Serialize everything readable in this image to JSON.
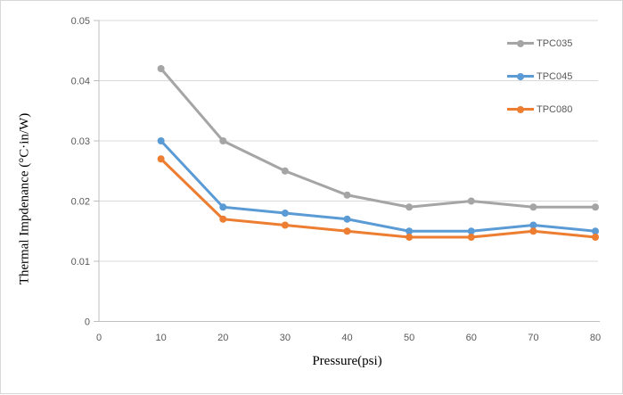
{
  "chart_data": {
    "type": "line",
    "title": "",
    "xlabel": "Pressure(psi)",
    "ylabel": "Thermal Impdenance (°C·in/W)",
    "x": [
      10,
      20,
      30,
      40,
      50,
      60,
      70,
      80
    ],
    "series": [
      {
        "name": "TPC035",
        "color": "#A5A5A5",
        "values": [
          0.042,
          0.03,
          0.025,
          0.021,
          0.019,
          0.02,
          0.019,
          0.019
        ]
      },
      {
        "name": "TPC045",
        "color": "#5B9BD5",
        "values": [
          0.03,
          0.019,
          0.018,
          0.017,
          0.015,
          0.015,
          0.016,
          0.015
        ]
      },
      {
        "name": "TPC080",
        "color": "#ED7D31",
        "values": [
          0.027,
          0.017,
          0.016,
          0.015,
          0.014,
          0.014,
          0.015,
          0.014
        ]
      }
    ],
    "xlim": [
      0,
      80
    ],
    "ylim": [
      0,
      0.05
    ],
    "x_tick_labels": [
      "0",
      "10",
      "20",
      "30",
      "40",
      "50",
      "60",
      "70",
      "80"
    ],
    "y_tick_labels": [
      "0",
      "0.01",
      "0.02",
      "0.03",
      "0.04",
      "0.05"
    ],
    "grid": "horizontal",
    "legend_position": "top-right",
    "marker": "circle",
    "colors": {
      "gridline": "#D9D9D9",
      "axis": "#BFBFBF",
      "tick_label": "#595959",
      "axis_title": "#000000",
      "background": "#FFFFFF",
      "frame_border": "#D7D7D7"
    }
  }
}
